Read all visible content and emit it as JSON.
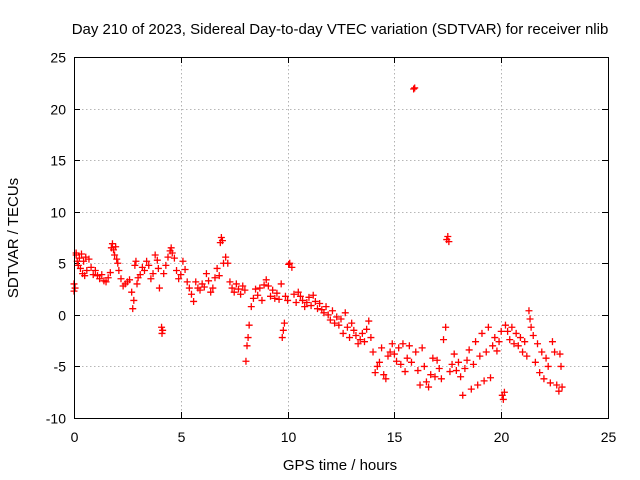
{
  "chart_data": {
    "type": "scatter",
    "title": "Day 210 of 2023, Sidereal Day-to-day VTEC variation (SDTVAR) for receiver nlib",
    "xlabel": "GPS time / hours",
    "ylabel": "SDTVAR / TECUs",
    "xlim": [
      0,
      25
    ],
    "ylim": [
      -10,
      25
    ],
    "xticks": [
      0,
      5,
      10,
      15,
      20,
      25
    ],
    "yticks": [
      -10,
      -5,
      0,
      5,
      10,
      15,
      20,
      25
    ],
    "xtick_labels": [
      "0",
      "5",
      "10",
      "15",
      "20",
      "25"
    ],
    "ytick_labels": [
      "-10",
      "-5",
      "0",
      "5",
      "10",
      "15",
      "20",
      "25"
    ],
    "grid": true,
    "marker": "+",
    "color": "#ff0000",
    "series": [
      {
        "name": "SDTVAR",
        "points": [
          [
            0.0,
            2.3
          ],
          [
            0.0,
            3.0
          ],
          [
            0.05,
            2.6
          ],
          [
            0.1,
            5.8
          ],
          [
            0.1,
            6.0
          ],
          [
            0.15,
            5.2
          ],
          [
            0.2,
            4.8
          ],
          [
            0.25,
            5.5
          ],
          [
            0.3,
            4.5
          ],
          [
            0.35,
            5.9
          ],
          [
            0.4,
            4.0
          ],
          [
            0.45,
            5.2
          ],
          [
            0.5,
            3.8
          ],
          [
            0.55,
            5.6
          ],
          [
            0.6,
            4.3
          ],
          [
            0.7,
            5.4
          ],
          [
            0.8,
            4.6
          ],
          [
            0.9,
            3.9
          ],
          [
            1.0,
            4.3
          ],
          [
            1.1,
            3.8
          ],
          [
            1.2,
            3.5
          ],
          [
            1.3,
            3.9
          ],
          [
            1.4,
            3.3
          ],
          [
            1.5,
            3.2
          ],
          [
            1.6,
            3.6
          ],
          [
            1.7,
            4.1
          ],
          [
            1.75,
            6.5
          ],
          [
            1.8,
            6.9
          ],
          [
            1.85,
            6.3
          ],
          [
            1.9,
            5.8
          ],
          [
            1.95,
            6.6
          ],
          [
            2.0,
            5.4
          ],
          [
            2.05,
            5.0
          ],
          [
            2.1,
            4.3
          ],
          [
            2.2,
            3.5
          ],
          [
            2.3,
            2.8
          ],
          [
            2.4,
            3.0
          ],
          [
            2.5,
            3.2
          ],
          [
            2.6,
            3.4
          ],
          [
            2.7,
            2.2
          ],
          [
            2.75,
            0.6
          ],
          [
            2.8,
            1.4
          ],
          [
            2.85,
            4.8
          ],
          [
            2.9,
            5.2
          ],
          [
            2.95,
            3.0
          ],
          [
            3.0,
            3.6
          ],
          [
            3.1,
            3.9
          ],
          [
            3.2,
            4.6
          ],
          [
            3.3,
            4.3
          ],
          [
            3.4,
            5.2
          ],
          [
            3.5,
            4.8
          ],
          [
            3.6,
            3.5
          ],
          [
            3.7,
            4.0
          ],
          [
            3.8,
            5.8
          ],
          [
            3.9,
            5.3
          ],
          [
            3.95,
            4.5
          ],
          [
            4.0,
            2.6
          ],
          [
            4.1,
            -1.2
          ],
          [
            4.12,
            -1.8
          ],
          [
            4.15,
            -1.5
          ],
          [
            4.2,
            4.0
          ],
          [
            4.3,
            4.8
          ],
          [
            4.4,
            5.6
          ],
          [
            4.5,
            6.2
          ],
          [
            4.55,
            6.5
          ],
          [
            4.6,
            6.0
          ],
          [
            4.7,
            5.5
          ],
          [
            4.8,
            4.3
          ],
          [
            4.9,
            3.5
          ],
          [
            5.0,
            3.9
          ],
          [
            5.1,
            5.2
          ],
          [
            5.2,
            4.4
          ],
          [
            5.3,
            3.2
          ],
          [
            5.4,
            2.6
          ],
          [
            5.5,
            2.0
          ],
          [
            5.6,
            1.3
          ],
          [
            5.7,
            3.2
          ],
          [
            5.8,
            2.6
          ],
          [
            5.9,
            2.4
          ],
          [
            6.0,
            3.0
          ],
          [
            6.1,
            2.7
          ],
          [
            6.2,
            4.0
          ],
          [
            6.3,
            3.3
          ],
          [
            6.4,
            2.2
          ],
          [
            6.5,
            2.6
          ],
          [
            6.6,
            3.6
          ],
          [
            6.7,
            4.5
          ],
          [
            6.8,
            3.8
          ],
          [
            6.85,
            7.0
          ],
          [
            6.9,
            7.5
          ],
          [
            6.95,
            7.2
          ],
          [
            7.0,
            5.0
          ],
          [
            7.1,
            5.6
          ],
          [
            7.2,
            5.0
          ],
          [
            7.3,
            3.2
          ],
          [
            7.4,
            2.6
          ],
          [
            7.5,
            2.2
          ],
          [
            7.6,
            3.0
          ],
          [
            7.7,
            2.5
          ],
          [
            7.8,
            2.0
          ],
          [
            7.9,
            2.8
          ],
          [
            8.0,
            2.4
          ],
          [
            8.05,
            -4.5
          ],
          [
            8.1,
            -3.0
          ],
          [
            8.15,
            -2.2
          ],
          [
            8.2,
            -1.0
          ],
          [
            8.3,
            0.8
          ],
          [
            8.4,
            1.6
          ],
          [
            8.5,
            2.5
          ],
          [
            8.6,
            1.9
          ],
          [
            8.7,
            2.6
          ],
          [
            8.8,
            1.4
          ],
          [
            8.9,
            2.9
          ],
          [
            9.0,
            3.4
          ],
          [
            9.1,
            2.8
          ],
          [
            9.2,
            1.8
          ],
          [
            9.3,
            2.4
          ],
          [
            9.4,
            1.6
          ],
          [
            9.5,
            2.1
          ],
          [
            9.6,
            1.5
          ],
          [
            9.7,
            3.0
          ],
          [
            9.75,
            -2.2
          ],
          [
            9.8,
            -1.5
          ],
          [
            9.85,
            -0.8
          ],
          [
            9.9,
            1.8
          ],
          [
            10.0,
            1.4
          ],
          [
            10.05,
            4.9
          ],
          [
            10.1,
            5.0
          ],
          [
            10.2,
            4.6
          ],
          [
            10.3,
            2.0
          ],
          [
            10.4,
            1.2
          ],
          [
            10.5,
            2.2
          ],
          [
            10.6,
            1.8
          ],
          [
            10.7,
            1.4
          ],
          [
            10.8,
            0.8
          ],
          [
            10.9,
            1.2
          ],
          [
            11.0,
            1.7
          ],
          [
            11.1,
            0.9
          ],
          [
            11.2,
            1.9
          ],
          [
            11.3,
            1.3
          ],
          [
            11.4,
            0.6
          ],
          [
            11.5,
            1.1
          ],
          [
            11.6,
            0.5
          ],
          [
            11.7,
            0.2
          ],
          [
            11.8,
            0.8
          ],
          [
            11.9,
            0.0
          ],
          [
            12.0,
            -0.5
          ],
          [
            12.1,
            0.4
          ],
          [
            12.2,
            -0.8
          ],
          [
            12.3,
            -0.2
          ],
          [
            12.4,
            -1.0
          ],
          [
            12.5,
            -0.4
          ],
          [
            12.6,
            -1.8
          ],
          [
            12.7,
            0.2
          ],
          [
            12.8,
            -1.2
          ],
          [
            12.9,
            -2.2
          ],
          [
            13.0,
            -0.8
          ],
          [
            13.1,
            -1.5
          ],
          [
            13.2,
            -2.0
          ],
          [
            13.3,
            -2.8
          ],
          [
            13.4,
            -2.4
          ],
          [
            13.5,
            -1.8
          ],
          [
            13.6,
            -2.6
          ],
          [
            13.7,
            -1.4
          ],
          [
            13.8,
            -0.6
          ],
          [
            13.9,
            -2.2
          ],
          [
            14.0,
            -3.6
          ],
          [
            14.1,
            -5.6
          ],
          [
            14.2,
            -5.0
          ],
          [
            14.3,
            -4.6
          ],
          [
            14.4,
            -3.2
          ],
          [
            14.5,
            -5.8
          ],
          [
            14.6,
            -6.2
          ],
          [
            14.7,
            -4.0
          ],
          [
            14.8,
            -3.6
          ],
          [
            14.9,
            -2.8
          ],
          [
            15.0,
            -3.8
          ],
          [
            15.1,
            -4.5
          ],
          [
            15.2,
            -3.2
          ],
          [
            15.3,
            -4.8
          ],
          [
            15.4,
            -2.8
          ],
          [
            15.5,
            -5.5
          ],
          [
            15.6,
            -4.2
          ],
          [
            15.7,
            -3.0
          ],
          [
            15.8,
            -4.6
          ],
          [
            15.9,
            21.9
          ],
          [
            15.95,
            22.0
          ],
          [
            16.0,
            -3.6
          ],
          [
            16.1,
            -5.4
          ],
          [
            16.2,
            -6.8
          ],
          [
            16.3,
            -3.2
          ],
          [
            16.4,
            -5.0
          ],
          [
            16.5,
            -6.5
          ],
          [
            16.6,
            -7.0
          ],
          [
            16.7,
            -5.8
          ],
          [
            16.8,
            -4.2
          ],
          [
            16.9,
            -6.0
          ],
          [
            17.0,
            -4.4
          ],
          [
            17.1,
            -5.2
          ],
          [
            17.2,
            -6.2
          ],
          [
            17.3,
            -2.4
          ],
          [
            17.4,
            -1.2
          ],
          [
            17.45,
            7.3
          ],
          [
            17.5,
            7.6
          ],
          [
            17.55,
            7.1
          ],
          [
            17.6,
            -5.5
          ],
          [
            17.7,
            -4.8
          ],
          [
            17.8,
            -3.8
          ],
          [
            17.9,
            -5.4
          ],
          [
            18.0,
            -4.6
          ],
          [
            18.1,
            -6.0
          ],
          [
            18.2,
            -7.8
          ],
          [
            18.3,
            -5.2
          ],
          [
            18.4,
            -4.4
          ],
          [
            18.5,
            -3.4
          ],
          [
            18.6,
            -7.2
          ],
          [
            18.7,
            -4.8
          ],
          [
            18.8,
            -2.6
          ],
          [
            18.9,
            -6.8
          ],
          [
            19.0,
            -4.0
          ],
          [
            19.1,
            -1.8
          ],
          [
            19.2,
            -6.4
          ],
          [
            19.3,
            -3.6
          ],
          [
            19.4,
            -1.2
          ],
          [
            19.5,
            -6.1
          ],
          [
            19.6,
            -3.0
          ],
          [
            19.7,
            -2.2
          ],
          [
            19.8,
            -3.5
          ],
          [
            19.9,
            -2.6
          ],
          [
            20.0,
            -1.6
          ],
          [
            20.05,
            -7.8
          ],
          [
            20.1,
            -8.2
          ],
          [
            20.15,
            -7.5
          ],
          [
            20.2,
            -1.0
          ],
          [
            20.3,
            -1.6
          ],
          [
            20.4,
            -2.4
          ],
          [
            20.5,
            -1.2
          ],
          [
            20.6,
            -2.8
          ],
          [
            20.7,
            -1.8
          ],
          [
            20.8,
            -3.0
          ],
          [
            20.9,
            -2.2
          ],
          [
            21.0,
            -3.6
          ],
          [
            21.1,
            -2.6
          ],
          [
            21.2,
            -4.0
          ],
          [
            21.3,
            0.4
          ],
          [
            21.35,
            -0.4
          ],
          [
            21.4,
            -1.2
          ],
          [
            21.5,
            -2.0
          ],
          [
            21.6,
            -4.6
          ],
          [
            21.7,
            -2.8
          ],
          [
            21.8,
            -5.6
          ],
          [
            21.9,
            -3.6
          ],
          [
            22.0,
            -6.2
          ],
          [
            22.1,
            -4.2
          ],
          [
            22.2,
            -5.0
          ],
          [
            22.3,
            -6.6
          ],
          [
            22.4,
            -2.6
          ],
          [
            22.5,
            -3.6
          ],
          [
            22.6,
            -6.8
          ],
          [
            22.7,
            -7.4
          ],
          [
            22.75,
            -3.8
          ],
          [
            22.8,
            -5.0
          ],
          [
            22.85,
            -7.0
          ]
        ]
      }
    ]
  }
}
